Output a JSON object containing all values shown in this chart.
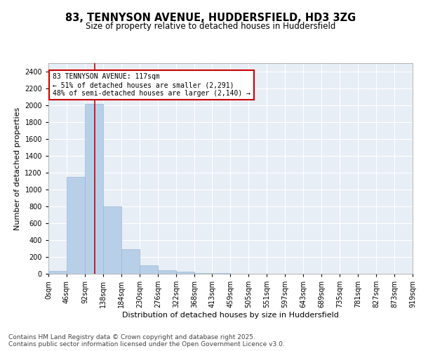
{
  "title": "83, TENNYSON AVENUE, HUDDERSFIELD, HD3 3ZG",
  "subtitle": "Size of property relative to detached houses in Huddersfield",
  "xlabel": "Distribution of detached houses by size in Huddersfield",
  "ylabel": "Number of detached properties",
  "annotation_text": "83 TENNYSON AVENUE: 117sqm\n← 51% of detached houses are smaller (2,291)\n48% of semi-detached houses are larger (2,140) →",
  "property_size": 117,
  "bin_edges": [
    0,
    46,
    92,
    138,
    184,
    230,
    276,
    322,
    368,
    413,
    459,
    505,
    551,
    597,
    643,
    689,
    735,
    781,
    827,
    873,
    919
  ],
  "bar_heights": [
    30,
    1150,
    2020,
    800,
    290,
    100,
    45,
    25,
    10,
    5,
    3,
    0,
    0,
    0,
    0,
    0,
    0,
    0,
    0,
    0
  ],
  "bar_color": "#b8cfe8",
  "bar_edge_color": "#9ab8d8",
  "vline_color": "#cc0000",
  "annotation_box_color": "#cc0000",
  "background_color": "#e8eef5",
  "grid_color": "#ffffff",
  "ylim": [
    0,
    2500
  ],
  "yticks": [
    0,
    200,
    400,
    600,
    800,
    1000,
    1200,
    1400,
    1600,
    1800,
    2000,
    2200,
    2400
  ],
  "footer_text": "Contains HM Land Registry data © Crown copyright and database right 2025.\nContains public sector information licensed under the Open Government Licence v3.0.",
  "title_fontsize": 10.5,
  "subtitle_fontsize": 8.5,
  "axis_label_fontsize": 8,
  "tick_fontsize": 7,
  "footer_fontsize": 6.5
}
